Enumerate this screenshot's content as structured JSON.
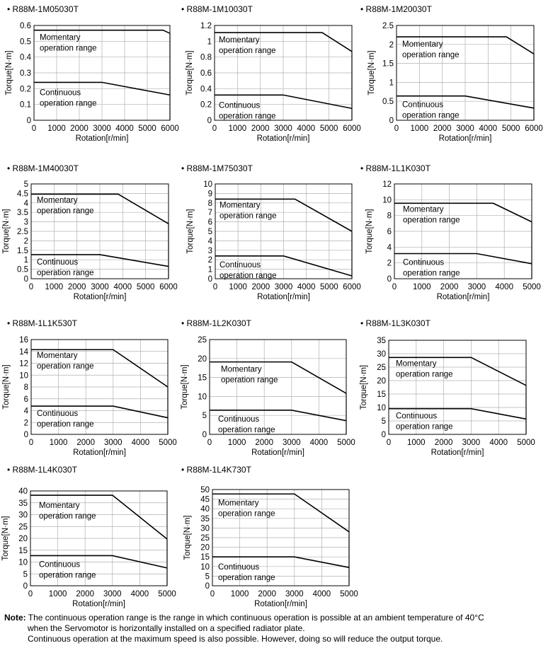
{
  "chart_data": [
    {
      "type": "line",
      "title": "R88M-1M05030T",
      "xlabel": "Rotation[r/min]",
      "ylabel": "Torque[N·m]",
      "xlim": [
        0,
        6000
      ],
      "ylim": [
        0,
        0.6
      ],
      "xticks": [
        "0",
        "1000",
        "2000",
        "3000",
        "4000",
        "5000",
        "6000"
      ],
      "yticks": [
        "0",
        "0.1",
        "0.2",
        "0.3",
        "0.4",
        "0.5",
        "0.6"
      ],
      "grid": true,
      "series": [
        {
          "name": "Momentary operation range",
          "x": [
            0,
            5700,
            6000
          ],
          "y": [
            0.57,
            0.57,
            0.55
          ]
        },
        {
          "name": "Continuous operation range",
          "x": [
            0,
            3000,
            6000
          ],
          "y": [
            0.24,
            0.24,
            0.16
          ]
        }
      ]
    },
    {
      "type": "line",
      "title": "R88M-1M10030T",
      "xlabel": "Rotation[r/min]",
      "ylabel": "Torque[N·m]",
      "xlim": [
        0,
        6000
      ],
      "ylim": [
        0,
        1.2
      ],
      "xticks": [
        "0",
        "1000",
        "2000",
        "3000",
        "4000",
        "5000",
        "6000"
      ],
      "yticks": [
        "0",
        "0.2",
        "0.4",
        "0.6",
        "0.8",
        "1",
        "1.2"
      ],
      "grid": true,
      "series": [
        {
          "name": "Momentary operation range",
          "x": [
            0,
            4700,
            6000
          ],
          "y": [
            1.11,
            1.11,
            0.87
          ]
        },
        {
          "name": "Continuous operation range",
          "x": [
            0,
            3000,
            6000
          ],
          "y": [
            0.32,
            0.32,
            0.15
          ]
        }
      ]
    },
    {
      "type": "line",
      "title": "R88M-1M20030T",
      "xlabel": "Rotation[r/min]",
      "ylabel": "Torque[N·m]",
      "xlim": [
        0,
        6000
      ],
      "ylim": [
        0,
        2.5
      ],
      "xticks": [
        "0",
        "1000",
        "2000",
        "3000",
        "4000",
        "5000",
        "6000"
      ],
      "yticks": [
        "0",
        "0.5",
        "1",
        "1.5",
        "2",
        "2.5"
      ],
      "grid": true,
      "series": [
        {
          "name": "Momentary operation range",
          "x": [
            0,
            4800,
            6000
          ],
          "y": [
            2.2,
            2.2,
            1.75
          ]
        },
        {
          "name": "Continuous operation range",
          "x": [
            0,
            3000,
            6000
          ],
          "y": [
            0.64,
            0.64,
            0.32
          ]
        }
      ]
    },
    {
      "type": "line",
      "title": "R88M-1M40030T",
      "xlabel": "Rotation[r/min]",
      "ylabel": "Torque[N·m]",
      "xlim": [
        0,
        6000
      ],
      "ylim": [
        0,
        5
      ],
      "xticks": [
        "0",
        "1000",
        "2000",
        "3000",
        "4000",
        "5000",
        "6000"
      ],
      "yticks": [
        "0",
        "0.5",
        "1",
        "1.5",
        "2",
        "2.5",
        "3",
        "3.5",
        "4",
        "4.5",
        "5"
      ],
      "grid": true,
      "series": [
        {
          "name": "Momentary operation range",
          "x": [
            0,
            3800,
            6000
          ],
          "y": [
            4.46,
            4.46,
            2.9
          ]
        },
        {
          "name": "Continuous operation range",
          "x": [
            0,
            3000,
            6000
          ],
          "y": [
            1.27,
            1.27,
            0.65
          ]
        }
      ]
    },
    {
      "type": "line",
      "title": "R88M-1M75030T",
      "xlabel": "Rotation[r/min]",
      "ylabel": "Torque[N·m]",
      "xlim": [
        0,
        6000
      ],
      "ylim": [
        0,
        10
      ],
      "xticks": [
        "0",
        "1000",
        "2000",
        "3000",
        "4000",
        "5000",
        "6000"
      ],
      "yticks": [
        "0",
        "1",
        "2",
        "3",
        "4",
        "5",
        "6",
        "7",
        "8",
        "9",
        "10"
      ],
      "grid": true,
      "series": [
        {
          "name": "Momentary operation range",
          "x": [
            0,
            3500,
            6000
          ],
          "y": [
            8.4,
            8.4,
            5.0
          ]
        },
        {
          "name": "Continuous operation range",
          "x": [
            0,
            3000,
            6000
          ],
          "y": [
            2.4,
            2.4,
            0.3
          ]
        }
      ]
    },
    {
      "type": "line",
      "title": "R88M-1L1K030T",
      "xlabel": "Rotation[r/min]",
      "ylabel": "Torque[N·m]",
      "xlim": [
        0,
        5000
      ],
      "ylim": [
        0,
        12
      ],
      "xticks": [
        "0",
        "1000",
        "2000",
        "3000",
        "4000",
        "5000"
      ],
      "yticks": [
        "0",
        "2",
        "4",
        "6",
        "8",
        "10",
        "12"
      ],
      "grid": true,
      "series": [
        {
          "name": "Momentary operation range",
          "x": [
            0,
            3600,
            5000
          ],
          "y": [
            9.55,
            9.55,
            7.2
          ]
        },
        {
          "name": "Continuous operation range",
          "x": [
            0,
            3000,
            5000
          ],
          "y": [
            3.18,
            3.18,
            1.9
          ]
        }
      ]
    },
    {
      "type": "line",
      "title": "R88M-1L1K530T",
      "xlabel": "Rotation[r/min]",
      "ylabel": "Torque[N·m]",
      "xlim": [
        0,
        5000
      ],
      "ylim": [
        0,
        16
      ],
      "xticks": [
        "0",
        "1000",
        "2000",
        "3000",
        "4000",
        "5000"
      ],
      "yticks": [
        "0",
        "2",
        "4",
        "6",
        "8",
        "10",
        "12",
        "14",
        "16"
      ],
      "grid": true,
      "series": [
        {
          "name": "Momentary operation range",
          "x": [
            0,
            3000,
            5000
          ],
          "y": [
            14.3,
            14.3,
            8.0
          ]
        },
        {
          "name": "Continuous operation range",
          "x": [
            0,
            3000,
            5000
          ],
          "y": [
            4.77,
            4.77,
            2.8
          ]
        }
      ]
    },
    {
      "type": "line",
      "title": "R88M-1L2K030T",
      "xlabel": "Rotation[r/min]",
      "ylabel": "Torque[N·m]",
      "xlim": [
        0,
        5000
      ],
      "ylim": [
        0,
        25
      ],
      "xticks": [
        "0",
        "1000",
        "2000",
        "3000",
        "4000",
        "5000"
      ],
      "yticks": [
        "0",
        "5",
        "10",
        "15",
        "20",
        "25"
      ],
      "grid": true,
      "series": [
        {
          "name": "Momentary operation range",
          "x": [
            0,
            3000,
            5000
          ],
          "y": [
            19.1,
            19.1,
            10.8
          ]
        },
        {
          "name": "Continuous operation range",
          "x": [
            0,
            3000,
            5000
          ],
          "y": [
            6.37,
            6.37,
            3.6
          ]
        }
      ]
    },
    {
      "type": "line",
      "title": "R88M-1L3K030T",
      "xlabel": "Rotation[r/min]",
      "ylabel": "Torque[N·m]",
      "xlim": [
        0,
        5000
      ],
      "ylim": [
        0,
        35
      ],
      "xticks": [
        "0",
        "1000",
        "2000",
        "3000",
        "4000",
        "5000"
      ],
      "yticks": [
        "0",
        "5",
        "10",
        "15",
        "20",
        "25",
        "30",
        "35"
      ],
      "grid": true,
      "series": [
        {
          "name": "Momentary operation range",
          "x": [
            0,
            3000,
            5000
          ],
          "y": [
            28.6,
            28.6,
            18.2
          ]
        },
        {
          "name": "Continuous operation range",
          "x": [
            0,
            3000,
            5000
          ],
          "y": [
            9.55,
            9.55,
            5.7
          ]
        }
      ]
    },
    {
      "type": "line",
      "title": "R88M-1L4K030T",
      "xlabel": "Rotation[r/min]",
      "ylabel": "Torque[N·m]",
      "xlim": [
        0,
        5000
      ],
      "ylim": [
        0,
        40
      ],
      "xticks": [
        "0",
        "1000",
        "2000",
        "3000",
        "4000",
        "5000"
      ],
      "yticks": [
        "0",
        "5",
        "10",
        "15",
        "20",
        "25",
        "30",
        "35",
        "40"
      ],
      "grid": true,
      "series": [
        {
          "name": "Momentary operation range",
          "x": [
            0,
            3000,
            5000
          ],
          "y": [
            38.2,
            38.2,
            19.7
          ]
        },
        {
          "name": "Continuous operation range",
          "x": [
            0,
            3000,
            5000
          ],
          "y": [
            12.7,
            12.7,
            7.5
          ]
        }
      ]
    },
    {
      "type": "line",
      "title": "R88M-1L4K730T",
      "xlabel": "Rotation[r/min]",
      "ylabel": "Torque[N·m]",
      "xlim": [
        0,
        5000
      ],
      "ylim": [
        0,
        50
      ],
      "xticks": [
        "0",
        "1000",
        "2000",
        "3000",
        "4000",
        "5000"
      ],
      "yticks": [
        "0",
        "5",
        "10",
        "15",
        "20",
        "25",
        "30",
        "35",
        "40",
        "45",
        "50"
      ],
      "grid": true,
      "series": [
        {
          "name": "Momentary operation range",
          "x": [
            0,
            3000,
            5000
          ],
          "y": [
            47.7,
            47.7,
            28.0
          ]
        },
        {
          "name": "Continuous operation range",
          "x": [
            0,
            3000,
            5000
          ],
          "y": [
            15.0,
            15.0,
            9.5
          ]
        }
      ]
    }
  ],
  "labels": {
    "momentary": [
      "Momentary",
      "operation range"
    ],
    "continuous": [
      "Continuous",
      "operation range"
    ]
  },
  "note": {
    "label": "Note:",
    "line1": "The continuous operation range is the range in which continuous operation is possible at an ambient temperature of 40°C",
    "line2": "when the Servomotor is horizontally installed on a specified radiator plate.",
    "line3": "Continuous operation at the maximum speed is also possible. However, doing so will reduce the output torque."
  },
  "colors": {
    "line": "#000000",
    "grid": "#b0b0b0",
    "frame": "#000000"
  }
}
